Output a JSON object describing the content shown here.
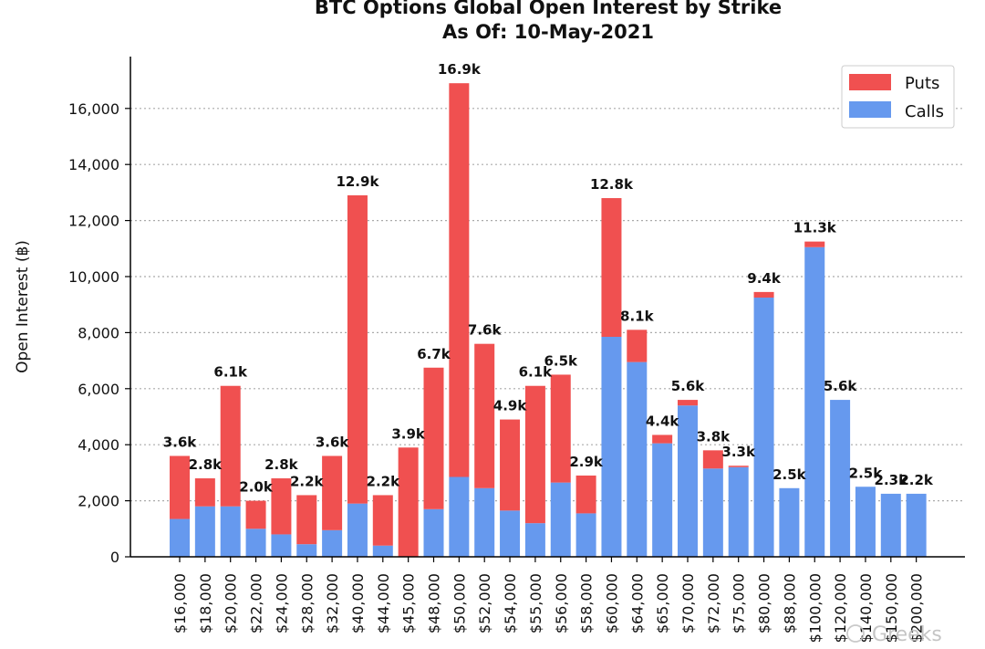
{
  "chart_data": {
    "type": "bar",
    "stacked": true,
    "title": "BTC Options Global Open Interest by Strike",
    "subtitle": "As Of: 10-May-2021",
    "xlabel": "",
    "ylabel": "Open Interest (฿)",
    "ylim": [
      0,
      17800
    ],
    "yticks": [
      0,
      2000,
      4000,
      6000,
      8000,
      10000,
      12000,
      14000,
      16000
    ],
    "ytick_labels": [
      "0",
      "2,000",
      "4,000",
      "6,000",
      "8,000",
      "10,000",
      "12,000",
      "14,000",
      "16,000"
    ],
    "grid": "horizontal dotted",
    "legend_position": "top-right",
    "categories": [
      "$16,000",
      "$18,000",
      "$20,000",
      "$22,000",
      "$24,000",
      "$28,000",
      "$32,000",
      "$40,000",
      "$44,000",
      "$45,000",
      "$48,000",
      "$50,000",
      "$52,000",
      "$54,000",
      "$55,000",
      "$56,000",
      "$58,000",
      "$60,000",
      "$64,000",
      "$65,000",
      "$70,000",
      "$72,000",
      "$75,000",
      "$80,000",
      "$88,000",
      "$100,000",
      "$120,000",
      "$140,000",
      "$150,000",
      "$200,000"
    ],
    "series": [
      {
        "name": "Calls",
        "color": "#6699EE",
        "values": [
          1350,
          1800,
          1800,
          1000,
          800,
          450,
          950,
          1900,
          400,
          0,
          1700,
          2850,
          2450,
          1650,
          1200,
          2650,
          1550,
          7850,
          6950,
          4050,
          5400,
          3150,
          3200,
          9250,
          2450,
          11050,
          5600,
          2500,
          2250,
          2250
        ]
      },
      {
        "name": "Puts",
        "color": "#F05050",
        "values": [
          2250,
          1000,
          4300,
          1000,
          2000,
          1750,
          2650,
          11000,
          1800,
          3900,
          5050,
          14050,
          5150,
          3250,
          4900,
          3850,
          1350,
          4950,
          1150,
          300,
          200,
          650,
          50,
          200,
          0,
          200,
          0,
          0,
          0,
          0
        ]
      }
    ],
    "totals_labels": [
      "3.6k",
      "2.8k",
      "6.1k",
      "2.0k",
      "2.8k",
      "2.2k",
      "3.6k",
      "12.9k",
      "2.2k",
      "3.9k",
      "6.7k",
      "16.9k",
      "7.6k",
      "4.9k",
      "6.1k",
      "6.5k",
      "2.9k",
      "12.8k",
      "8.1k",
      "4.4k",
      "5.6k",
      "3.8k",
      "3.3k",
      "9.4k",
      "2.5k",
      "11.3k",
      "5.6k",
      "2.5k",
      "2.3k",
      "2.2k"
    ]
  },
  "legend": {
    "puts_label": "Puts",
    "calls_label": "Calls"
  },
  "watermark": {
    "text": "Greeks"
  }
}
